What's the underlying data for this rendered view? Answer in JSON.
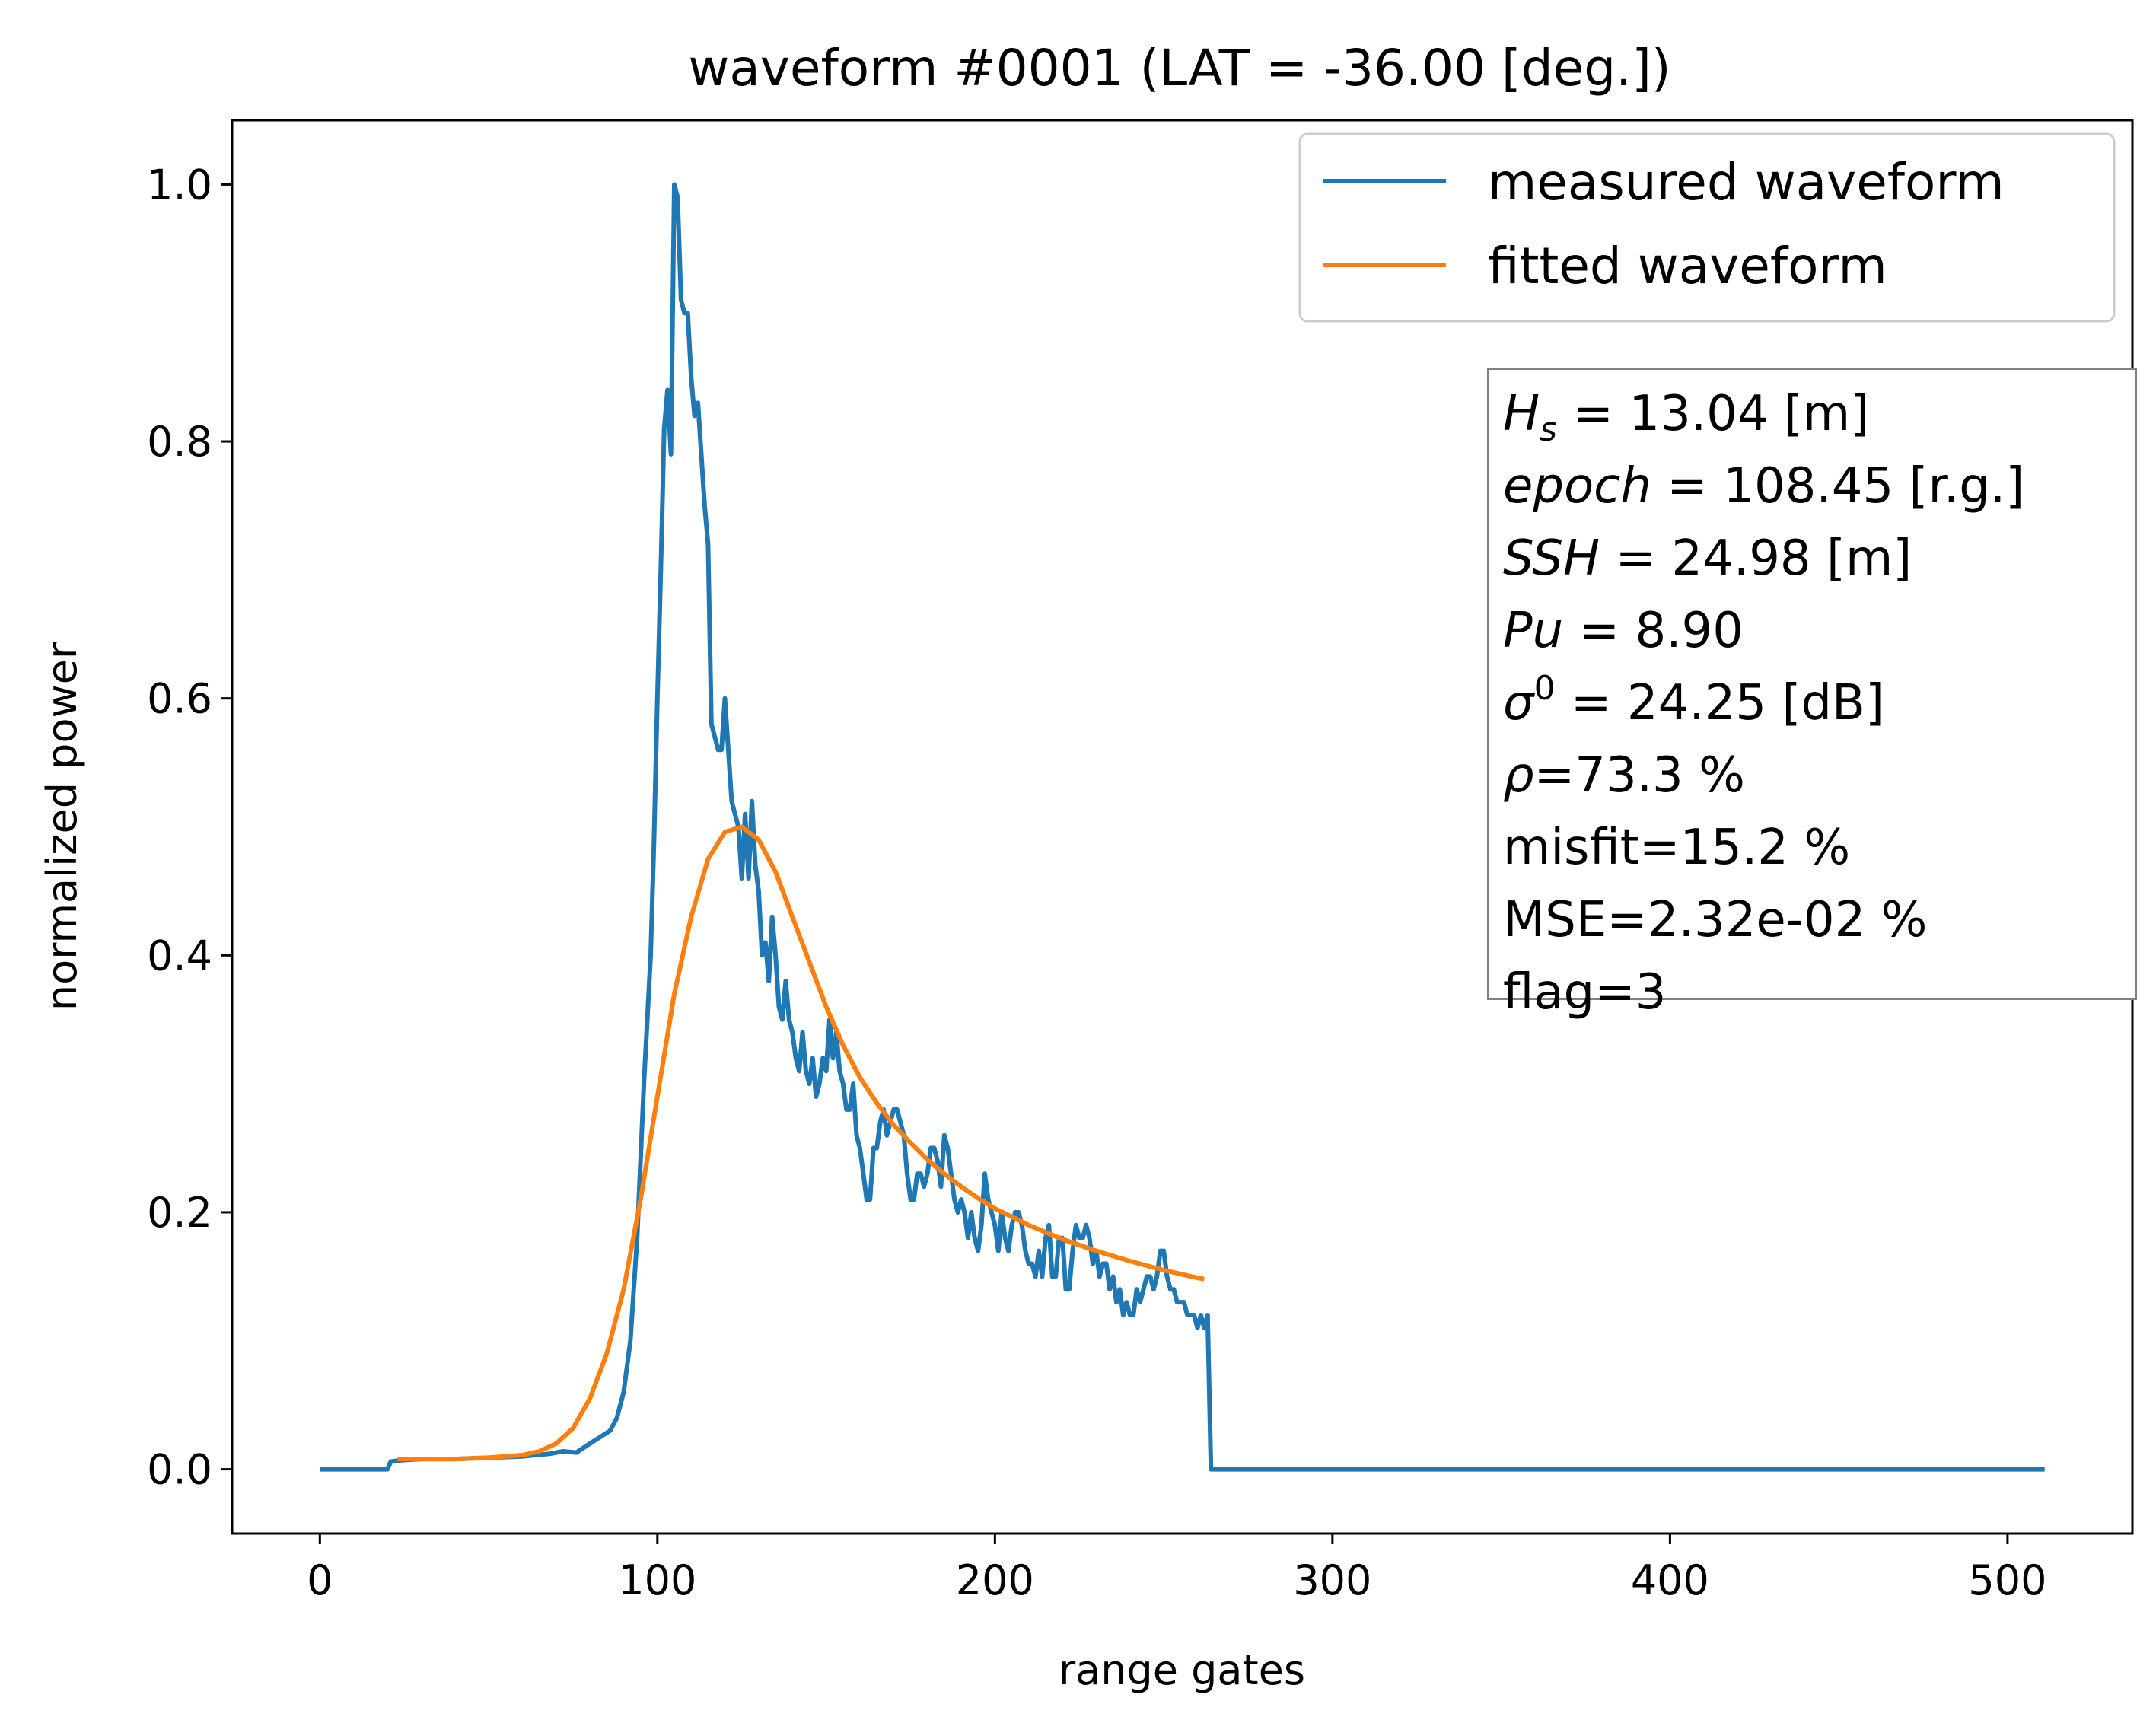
{
  "chart_data": {
    "type": "line",
    "title": "waveform #0001 (LAT = -36.00 [deg.])",
    "xlabel": "range gates",
    "ylabel": "normalized power",
    "xlim": [
      -26,
      537
    ],
    "ylim": [
      -0.05,
      1.05
    ],
    "xticks": [
      0,
      100,
      200,
      300,
      400,
      500
    ],
    "xtick_labels": [
      "0",
      "100",
      "200",
      "300",
      "400",
      "500"
    ],
    "yticks": [
      0.0,
      0.2,
      0.4,
      0.6,
      0.8,
      1.0
    ],
    "ytick_labels": [
      "0.0",
      "0.2",
      "0.4",
      "0.6",
      "0.8",
      "1.0"
    ],
    "grid": false,
    "legend_position": "top-right",
    "series": [
      {
        "name": "measured waveform",
        "color": "#1f77b4",
        "points": [
          [
            0,
            0.0
          ],
          [
            20,
            0.0
          ],
          [
            21,
            0.006
          ],
          [
            24,
            0.007
          ],
          [
            30,
            0.008
          ],
          [
            40,
            0.008
          ],
          [
            50,
            0.009
          ],
          [
            60,
            0.01
          ],
          [
            68,
            0.012
          ],
          [
            72,
            0.014
          ],
          [
            76,
            0.013
          ],
          [
            80,
            0.02
          ],
          [
            83,
            0.025
          ],
          [
            86,
            0.03
          ],
          [
            88,
            0.04
          ],
          [
            90,
            0.06
          ],
          [
            92,
            0.1
          ],
          [
            94,
            0.18
          ],
          [
            96,
            0.3
          ],
          [
            98,
            0.4
          ],
          [
            99,
            0.49
          ],
          [
            100,
            0.6
          ],
          [
            101,
            0.7
          ],
          [
            102,
            0.81
          ],
          [
            103,
            0.84
          ],
          [
            104,
            0.79
          ],
          [
            105,
            1.0
          ],
          [
            106,
            0.99
          ],
          [
            107,
            0.91
          ],
          [
            108,
            0.9
          ],
          [
            109,
            0.9
          ],
          [
            110,
            0.85
          ],
          [
            111,
            0.82
          ],
          [
            112,
            0.83
          ],
          [
            113,
            0.79
          ],
          [
            114,
            0.75
          ],
          [
            115,
            0.72
          ],
          [
            116,
            0.58
          ],
          [
            117,
            0.57
          ],
          [
            118,
            0.56
          ],
          [
            119,
            0.56
          ],
          [
            120,
            0.6
          ],
          [
            121,
            0.56
          ],
          [
            122,
            0.52
          ],
          [
            123,
            0.51
          ],
          [
            124,
            0.5
          ],
          [
            125,
            0.46
          ],
          [
            126,
            0.51
          ],
          [
            127,
            0.46
          ],
          [
            128,
            0.52
          ],
          [
            129,
            0.47
          ],
          [
            130,
            0.45
          ],
          [
            131,
            0.4
          ],
          [
            132,
            0.41
          ],
          [
            133,
            0.38
          ],
          [
            134,
            0.43
          ],
          [
            135,
            0.4
          ],
          [
            136,
            0.36
          ],
          [
            137,
            0.35
          ],
          [
            138,
            0.38
          ],
          [
            139,
            0.35
          ],
          [
            140,
            0.34
          ],
          [
            141,
            0.32
          ],
          [
            142,
            0.31
          ],
          [
            143,
            0.34
          ],
          [
            144,
            0.31
          ],
          [
            145,
            0.3
          ],
          [
            146,
            0.32
          ],
          [
            147,
            0.29
          ],
          [
            148,
            0.3
          ],
          [
            149,
            0.32
          ],
          [
            150,
            0.31
          ],
          [
            151,
            0.35
          ],
          [
            152,
            0.32
          ],
          [
            153,
            0.34
          ],
          [
            154,
            0.31
          ],
          [
            155,
            0.3
          ],
          [
            156,
            0.28
          ],
          [
            157,
            0.28
          ],
          [
            158,
            0.3
          ],
          [
            159,
            0.26
          ],
          [
            160,
            0.25
          ],
          [
            161,
            0.23
          ],
          [
            162,
            0.21
          ],
          [
            163,
            0.21
          ],
          [
            164,
            0.25
          ],
          [
            165,
            0.25
          ],
          [
            166,
            0.27
          ],
          [
            167,
            0.28
          ],
          [
            168,
            0.26
          ],
          [
            169,
            0.27
          ],
          [
            170,
            0.28
          ],
          [
            171,
            0.28
          ],
          [
            172,
            0.27
          ],
          [
            173,
            0.26
          ],
          [
            174,
            0.23
          ],
          [
            175,
            0.21
          ],
          [
            176,
            0.21
          ],
          [
            177,
            0.23
          ],
          [
            178,
            0.23
          ],
          [
            179,
            0.22
          ],
          [
            180,
            0.23
          ],
          [
            181,
            0.25
          ],
          [
            182,
            0.25
          ],
          [
            183,
            0.24
          ],
          [
            184,
            0.22
          ],
          [
            185,
            0.26
          ],
          [
            186,
            0.25
          ],
          [
            187,
            0.23
          ],
          [
            188,
            0.21
          ],
          [
            189,
            0.2
          ],
          [
            190,
            0.21
          ],
          [
            191,
            0.2
          ],
          [
            192,
            0.18
          ],
          [
            193,
            0.2
          ],
          [
            194,
            0.18
          ],
          [
            195,
            0.17
          ],
          [
            196,
            0.19
          ],
          [
            197,
            0.23
          ],
          [
            198,
            0.21
          ],
          [
            199,
            0.2
          ],
          [
            200,
            0.19
          ],
          [
            201,
            0.17
          ],
          [
            202,
            0.2
          ],
          [
            203,
            0.18
          ],
          [
            204,
            0.17
          ],
          [
            205,
            0.19
          ],
          [
            206,
            0.2
          ],
          [
            207,
            0.2
          ],
          [
            208,
            0.19
          ],
          [
            209,
            0.17
          ],
          [
            210,
            0.16
          ],
          [
            211,
            0.16
          ],
          [
            212,
            0.15
          ],
          [
            213,
            0.17
          ],
          [
            214,
            0.15
          ],
          [
            215,
            0.18
          ],
          [
            216,
            0.19
          ],
          [
            217,
            0.15
          ],
          [
            218,
            0.15
          ],
          [
            219,
            0.18
          ],
          [
            220,
            0.18
          ],
          [
            221,
            0.14
          ],
          [
            222,
            0.14
          ],
          [
            223,
            0.17
          ],
          [
            224,
            0.19
          ],
          [
            225,
            0.18
          ],
          [
            226,
            0.18
          ],
          [
            227,
            0.19
          ],
          [
            228,
            0.18
          ],
          [
            229,
            0.16
          ],
          [
            230,
            0.17
          ],
          [
            231,
            0.15
          ],
          [
            232,
            0.16
          ],
          [
            233,
            0.16
          ],
          [
            234,
            0.14
          ],
          [
            235,
            0.15
          ],
          [
            236,
            0.13
          ],
          [
            237,
            0.14
          ],
          [
            238,
            0.12
          ],
          [
            239,
            0.13
          ],
          [
            240,
            0.12
          ],
          [
            241,
            0.12
          ],
          [
            242,
            0.14
          ],
          [
            243,
            0.13
          ],
          [
            244,
            0.14
          ],
          [
            245,
            0.15
          ],
          [
            246,
            0.15
          ],
          [
            247,
            0.14
          ],
          [
            248,
            0.15
          ],
          [
            249,
            0.17
          ],
          [
            250,
            0.17
          ],
          [
            251,
            0.15
          ],
          [
            252,
            0.14
          ],
          [
            253,
            0.14
          ],
          [
            254,
            0.13
          ],
          [
            255,
            0.13
          ],
          [
            256,
            0.13
          ],
          [
            257,
            0.12
          ],
          [
            258,
            0.12
          ],
          [
            259,
            0.12
          ],
          [
            260,
            0.11
          ],
          [
            261,
            0.12
          ],
          [
            262,
            0.11
          ],
          [
            263,
            0.12
          ],
          [
            264,
            0.0
          ],
          [
            300,
            0.0
          ],
          [
            400,
            0.0
          ],
          [
            511,
            0.0
          ]
        ]
      },
      {
        "name": "fitted waveform",
        "color": "#ff7f0e",
        "points": [
          [
            23,
            0.008
          ],
          [
            30,
            0.008
          ],
          [
            40,
            0.008
          ],
          [
            50,
            0.009
          ],
          [
            60,
            0.011
          ],
          [
            65,
            0.014
          ],
          [
            70,
            0.02
          ],
          [
            75,
            0.032
          ],
          [
            80,
            0.055
          ],
          [
            85,
            0.09
          ],
          [
            90,
            0.14
          ],
          [
            95,
            0.21
          ],
          [
            100,
            0.29
          ],
          [
            105,
            0.37
          ],
          [
            110,
            0.43
          ],
          [
            115,
            0.475
          ],
          [
            120,
            0.496
          ],
          [
            125,
            0.5
          ],
          [
            130,
            0.49
          ],
          [
            135,
            0.465
          ],
          [
            140,
            0.43
          ],
          [
            145,
            0.395
          ],
          [
            150,
            0.36
          ],
          [
            155,
            0.33
          ],
          [
            160,
            0.305
          ],
          [
            165,
            0.285
          ],
          [
            170,
            0.268
          ],
          [
            175,
            0.254
          ],
          [
            180,
            0.241
          ],
          [
            185,
            0.23
          ],
          [
            190,
            0.22
          ],
          [
            195,
            0.211
          ],
          [
            200,
            0.203
          ],
          [
            210,
            0.19
          ],
          [
            220,
            0.179
          ],
          [
            230,
            0.17
          ],
          [
            240,
            0.162
          ],
          [
            250,
            0.155
          ],
          [
            260,
            0.149
          ],
          [
            262,
            0.148
          ]
        ]
      }
    ],
    "annotation_lines": [
      {
        "symbol": "H",
        "sub": "s",
        "rest": " = 13.04 [m]"
      },
      {
        "symbol": "epoch",
        "rest": " = 108.45 [r.g.]"
      },
      {
        "symbol": "SSH",
        "rest": " = 24.98 [m]"
      },
      {
        "symbol": "Pu",
        "rest": " = 8.90"
      },
      {
        "symbol": "σ",
        "sup": "0",
        "rest": " = 24.25 [dB]"
      },
      {
        "symbol": "ρ",
        "rest": "=73.3 %"
      },
      {
        "text": "misfit=15.2 %"
      },
      {
        "text": "MSE=2.32e-02 %"
      },
      {
        "text": "flag=3"
      }
    ]
  }
}
